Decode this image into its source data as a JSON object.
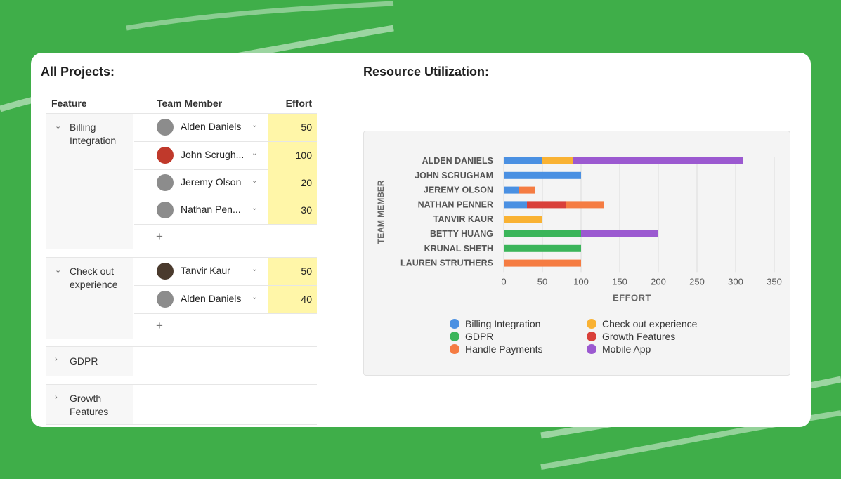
{
  "projects_title": "All Projects:",
  "util_title": "Resource Utilization:",
  "table": {
    "headers": {
      "feature": "Feature",
      "member": "Team Member",
      "effort": "Effort"
    },
    "groups": [
      {
        "feature": "Billing Integration",
        "expanded": true,
        "rows": [
          {
            "member": "Alden Daniels",
            "effort": "50"
          },
          {
            "member": "John Scrugh...",
            "effort": "100"
          },
          {
            "member": "Jeremy Olson",
            "effort": "20"
          },
          {
            "member": "Nathan Pen...",
            "effort": "30"
          }
        ]
      },
      {
        "feature": "Check out experience",
        "expanded": true,
        "rows": [
          {
            "member": "Tanvir Kaur",
            "effort": "50"
          },
          {
            "member": "Alden Daniels",
            "effort": "40"
          }
        ]
      },
      {
        "feature": "GDPR",
        "expanded": false,
        "rows": []
      },
      {
        "feature": "Growth Features",
        "expanded": false,
        "rows": []
      }
    ],
    "icons": {
      "collapse": "chevron-down-icon",
      "expand": "chevron-right-icon",
      "dropdown": "chevron-down-icon",
      "add": "plus-icon"
    }
  },
  "chart_data": {
    "type": "bar",
    "orientation": "horizontal",
    "stacked": true,
    "categories": [
      "ALDEN DANIELS",
      "JOHN SCRUGHAM",
      "JEREMY OLSON",
      "NATHAN PENNER",
      "TANVIR KAUR",
      "BETTY HUANG",
      "KRUNAL SHETH",
      "LAUREN STRUTHERS"
    ],
    "series": [
      {
        "name": "Billing Integration",
        "color": "#4a90e2",
        "values": [
          50,
          100,
          20,
          30,
          0,
          0,
          0,
          0
        ]
      },
      {
        "name": "Check out experience",
        "color": "#f9b233",
        "values": [
          40,
          0,
          0,
          0,
          50,
          0,
          0,
          0
        ]
      },
      {
        "name": "GDPR",
        "color": "#3bb55a",
        "values": [
          0,
          0,
          0,
          0,
          0,
          100,
          100,
          0
        ]
      },
      {
        "name": "Growth Features",
        "color": "#d9403a",
        "values": [
          0,
          0,
          0,
          50,
          0,
          0,
          0,
          0
        ]
      },
      {
        "name": "Handle Payments",
        "color": "#f57c42",
        "values": [
          0,
          0,
          20,
          50,
          0,
          0,
          0,
          100
        ]
      },
      {
        "name": "Mobile App",
        "color": "#9b59d0",
        "values": [
          220,
          0,
          0,
          0,
          0,
          100,
          0,
          0
        ]
      }
    ],
    "xlabel": "EFFORT",
    "ylabel": "TEAM MEMBER",
    "xlim": [
      0,
      350
    ],
    "xticks": [
      "0",
      "50",
      "100",
      "150",
      "200",
      "250",
      "300",
      "350"
    ],
    "grid": "vertical",
    "legend": "bottom"
  }
}
